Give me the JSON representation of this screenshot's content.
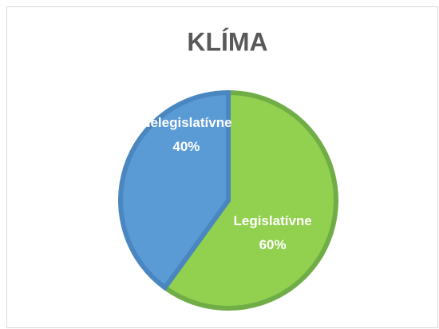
{
  "chart_data": {
    "type": "pie",
    "title": "KLÍMA",
    "categories": [
      "Legislatívne",
      "Nelegislatívne"
    ],
    "values": [
      60,
      40
    ],
    "value_labels": [
      "60%",
      "40%"
    ],
    "colors": [
      "#92d050",
      "#5b9bd5"
    ],
    "edge_colors": [
      "#70ad47",
      "#4a86c0"
    ]
  }
}
